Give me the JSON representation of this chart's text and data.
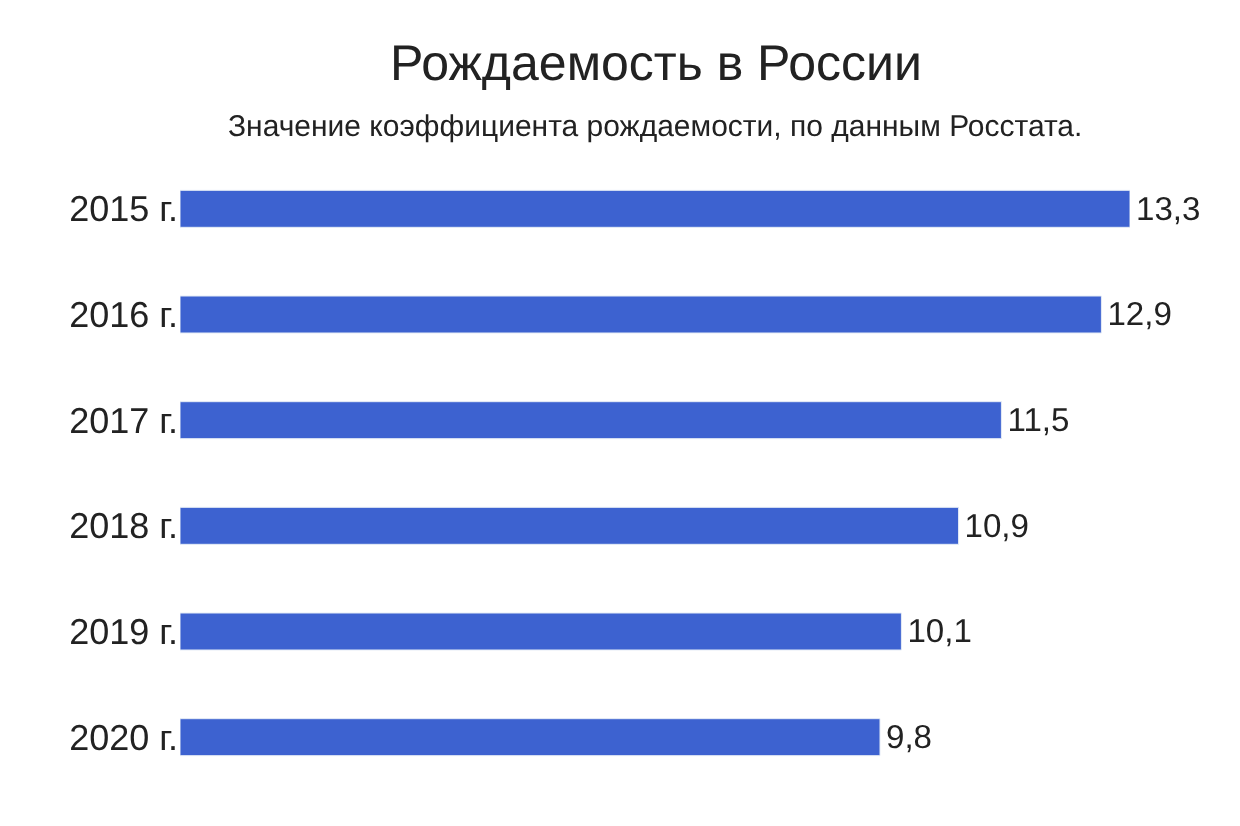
{
  "chart_data": {
    "type": "bar",
    "orientation": "horizontal",
    "title": "Рождаемость в России",
    "subtitle": "Значение коэффициента рождаемости, по данным Росстата.",
    "categories": [
      "2015 г.",
      "2016 г.",
      "2017 г.",
      "2018 г.",
      "2019 г.",
      "2020 г."
    ],
    "values": [
      13.3,
      12.9,
      11.5,
      10.9,
      10.1,
      9.8
    ],
    "value_labels": [
      "13,3",
      "12,9",
      "11,5",
      "10,9",
      "10,1",
      "9,8"
    ],
    "color": "#3d62d0",
    "xlim": [
      0,
      13.3
    ]
  }
}
